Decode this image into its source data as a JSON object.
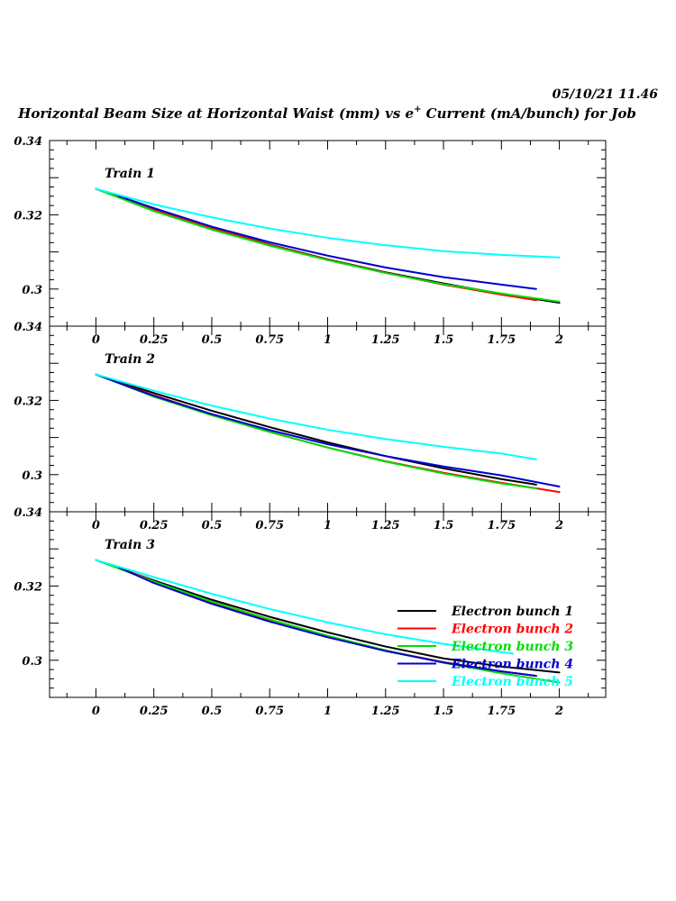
{
  "header": {
    "timestamp": "05/10/21   11.46",
    "title_prefix": "Horizontal Beam Size at Horizontal Waist (mm) vs e",
    "title_superscript": "+",
    "title_suffix": " Current (mA/bunch) for Job"
  },
  "legend": {
    "placement": "lower-right of bottom panel",
    "entries": [
      {
        "label": "Electron bunch 1",
        "color": "#000000"
      },
      {
        "label": "Electron bunch 2",
        "color": "#ff0000"
      },
      {
        "label": "Electron bunch 3",
        "color": "#00dd00"
      },
      {
        "label": "Electron bunch 4",
        "color": "#0000cc"
      },
      {
        "label": "Electron bunch 5",
        "color": "#00ffff"
      }
    ]
  },
  "chart_data": [
    {
      "type": "line",
      "title": "Train 1",
      "xlim": [
        -0.2,
        2.2
      ],
      "ylim": [
        0.29,
        0.34
      ],
      "x_ticks": [
        "0",
        "0.25",
        "0.5",
        "0.75",
        "1",
        "1.25",
        "1.5",
        "1.75",
        "2"
      ],
      "y_ticks": [
        "0.34",
        "0.32",
        "0.3"
      ],
      "series": [
        {
          "name": "Electron bunch 1",
          "color": "#000000",
          "x": [
            0,
            0.25,
            0.5,
            0.75,
            1,
            1.25,
            1.5,
            1.75,
            2
          ],
          "y": [
            0.327,
            0.3215,
            0.3165,
            0.312,
            0.308,
            0.3045,
            0.3015,
            0.2987,
            0.2963
          ]
        },
        {
          "name": "Electron bunch 2",
          "color": "#ff0000",
          "x": [
            0.05,
            0.25,
            0.5,
            0.75,
            1,
            1.25,
            1.5,
            1.75,
            1.9
          ],
          "y": [
            0.3258,
            0.3213,
            0.3164,
            0.3119,
            0.3079,
            0.3044,
            0.3012,
            0.2985,
            0.297
          ]
        },
        {
          "name": "Electron bunch 3",
          "color": "#00dd00",
          "x": [
            0,
            0.25,
            0.5,
            0.75,
            1,
            1.25,
            1.5,
            1.75,
            2
          ],
          "y": [
            0.327,
            0.321,
            0.316,
            0.3117,
            0.3078,
            0.3043,
            0.3013,
            0.2988,
            0.2966
          ]
        },
        {
          "name": "Electron bunch 4",
          "color": "#0000cc",
          "x": [
            0.1,
            0.25,
            0.5,
            0.75,
            1,
            1.25,
            1.5,
            1.75,
            1.9
          ],
          "y": [
            0.325,
            0.3218,
            0.3168,
            0.3126,
            0.309,
            0.3058,
            0.3032,
            0.3012,
            0.3
          ]
        },
        {
          "name": "Electron bunch 5",
          "color": "#00ffff",
          "x": [
            0,
            0.25,
            0.5,
            0.75,
            1,
            1.25,
            1.5,
            1.75,
            2
          ],
          "y": [
            0.327,
            0.3228,
            0.3193,
            0.3163,
            0.3138,
            0.3118,
            0.3102,
            0.3092,
            0.3085
          ]
        }
      ]
    },
    {
      "type": "line",
      "title": "Train 2",
      "xlim": [
        -0.2,
        2.2
      ],
      "ylim": [
        0.29,
        0.34
      ],
      "x_ticks": [
        "0",
        "0.25",
        "0.5",
        "0.75",
        "1",
        "1.25",
        "1.5",
        "1.75",
        "2"
      ],
      "y_ticks": [
        "0.34",
        "0.32",
        "0.3"
      ],
      "series": [
        {
          "name": "Electron bunch 1",
          "color": "#000000",
          "x": [
            0,
            0.25,
            0.5,
            0.75,
            1,
            1.25,
            1.5,
            1.75,
            1.9
          ],
          "y": [
            0.327,
            0.322,
            0.3172,
            0.3128,
            0.3087,
            0.305,
            0.3017,
            0.2988,
            0.2973
          ]
        },
        {
          "name": "Electron bunch 2",
          "color": "#ff0000",
          "x": [
            0,
            0.25,
            0.5,
            0.75,
            1,
            1.25,
            1.5,
            1.75,
            2
          ],
          "y": [
            0.327,
            0.3214,
            0.3162,
            0.3115,
            0.3073,
            0.3036,
            0.3005,
            0.2978,
            0.2953
          ]
        },
        {
          "name": "Electron bunch 3",
          "color": "#00dd00",
          "x": [
            0,
            0.25,
            0.5,
            0.75,
            1,
            1.25,
            1.5,
            1.75,
            1.9
          ],
          "y": [
            0.327,
            0.321,
            0.316,
            0.3115,
            0.3073,
            0.3035,
            0.3003,
            0.2976,
            0.2963
          ]
        },
        {
          "name": "Electron bunch 4",
          "color": "#0000cc",
          "x": [
            0,
            0.25,
            0.5,
            0.75,
            1,
            1.25,
            1.5,
            1.75,
            2
          ],
          "y": [
            0.327,
            0.3212,
            0.3163,
            0.312,
            0.3082,
            0.305,
            0.3022,
            0.2998,
            0.2968
          ]
        },
        {
          "name": "Electron bunch 5",
          "color": "#00ffff",
          "x": [
            0,
            0.25,
            0.5,
            0.75,
            1,
            1.25,
            1.5,
            1.75,
            1.9
          ],
          "y": [
            0.327,
            0.3226,
            0.3186,
            0.3151,
            0.3121,
            0.3096,
            0.3075,
            0.3057,
            0.3041
          ]
        }
      ]
    },
    {
      "type": "line",
      "title": "Train 3",
      "xlim": [
        -0.2,
        2.2
      ],
      "ylim": [
        0.29,
        0.34
      ],
      "x_ticks": [
        "0",
        "0.25",
        "0.5",
        "0.75",
        "1",
        "1.25",
        "1.5",
        "1.75",
        "2"
      ],
      "y_ticks": [
        "0.34",
        "0.32",
        "0.3"
      ],
      "series": [
        {
          "name": "Electron bunch 1",
          "color": "#000000",
          "x": [
            0,
            0.25,
            0.5,
            0.75,
            1,
            1.25,
            1.5,
            1.75,
            2
          ],
          "y": [
            0.327,
            0.3215,
            0.3163,
            0.3117,
            0.3075,
            0.3037,
            0.3005,
            0.2983,
            0.2967
          ]
        },
        {
          "name": "Electron bunch 2",
          "color": "#ff0000",
          "x": [
            0.1,
            0.25,
            0.5,
            0.75,
            1,
            1.25,
            1.5,
            1.75,
            1.9
          ],
          "y": [
            0.325,
            0.3212,
            0.3156,
            0.3106,
            0.3063,
            0.3026,
            0.2995,
            0.297,
            0.2958
          ]
        },
        {
          "name": "Electron bunch 3",
          "color": "#00dd00",
          "x": [
            0,
            0.25,
            0.5,
            0.75,
            1,
            1.25,
            1.5,
            1.75,
            2
          ],
          "y": [
            0.327,
            0.3212,
            0.3158,
            0.311,
            0.3066,
            0.3027,
            0.2993,
            0.2965,
            0.294
          ]
        },
        {
          "name": "Electron bunch 4",
          "color": "#0000cc",
          "x": [
            0.1,
            0.25,
            0.5,
            0.75,
            1,
            1.25,
            1.5,
            1.75,
            1.9
          ],
          "y": [
            0.325,
            0.3208,
            0.3152,
            0.3104,
            0.3062,
            0.3025,
            0.2994,
            0.297,
            0.2958
          ]
        },
        {
          "name": "Electron bunch 5",
          "color": "#00ffff",
          "x": [
            0,
            0.25,
            0.5,
            0.75,
            1,
            1.25,
            1.5,
            1.75,
            1.8
          ],
          "y": [
            0.327,
            0.3224,
            0.3179,
            0.3138,
            0.3102,
            0.307,
            0.3044,
            0.3022,
            0.3018
          ]
        }
      ]
    }
  ]
}
